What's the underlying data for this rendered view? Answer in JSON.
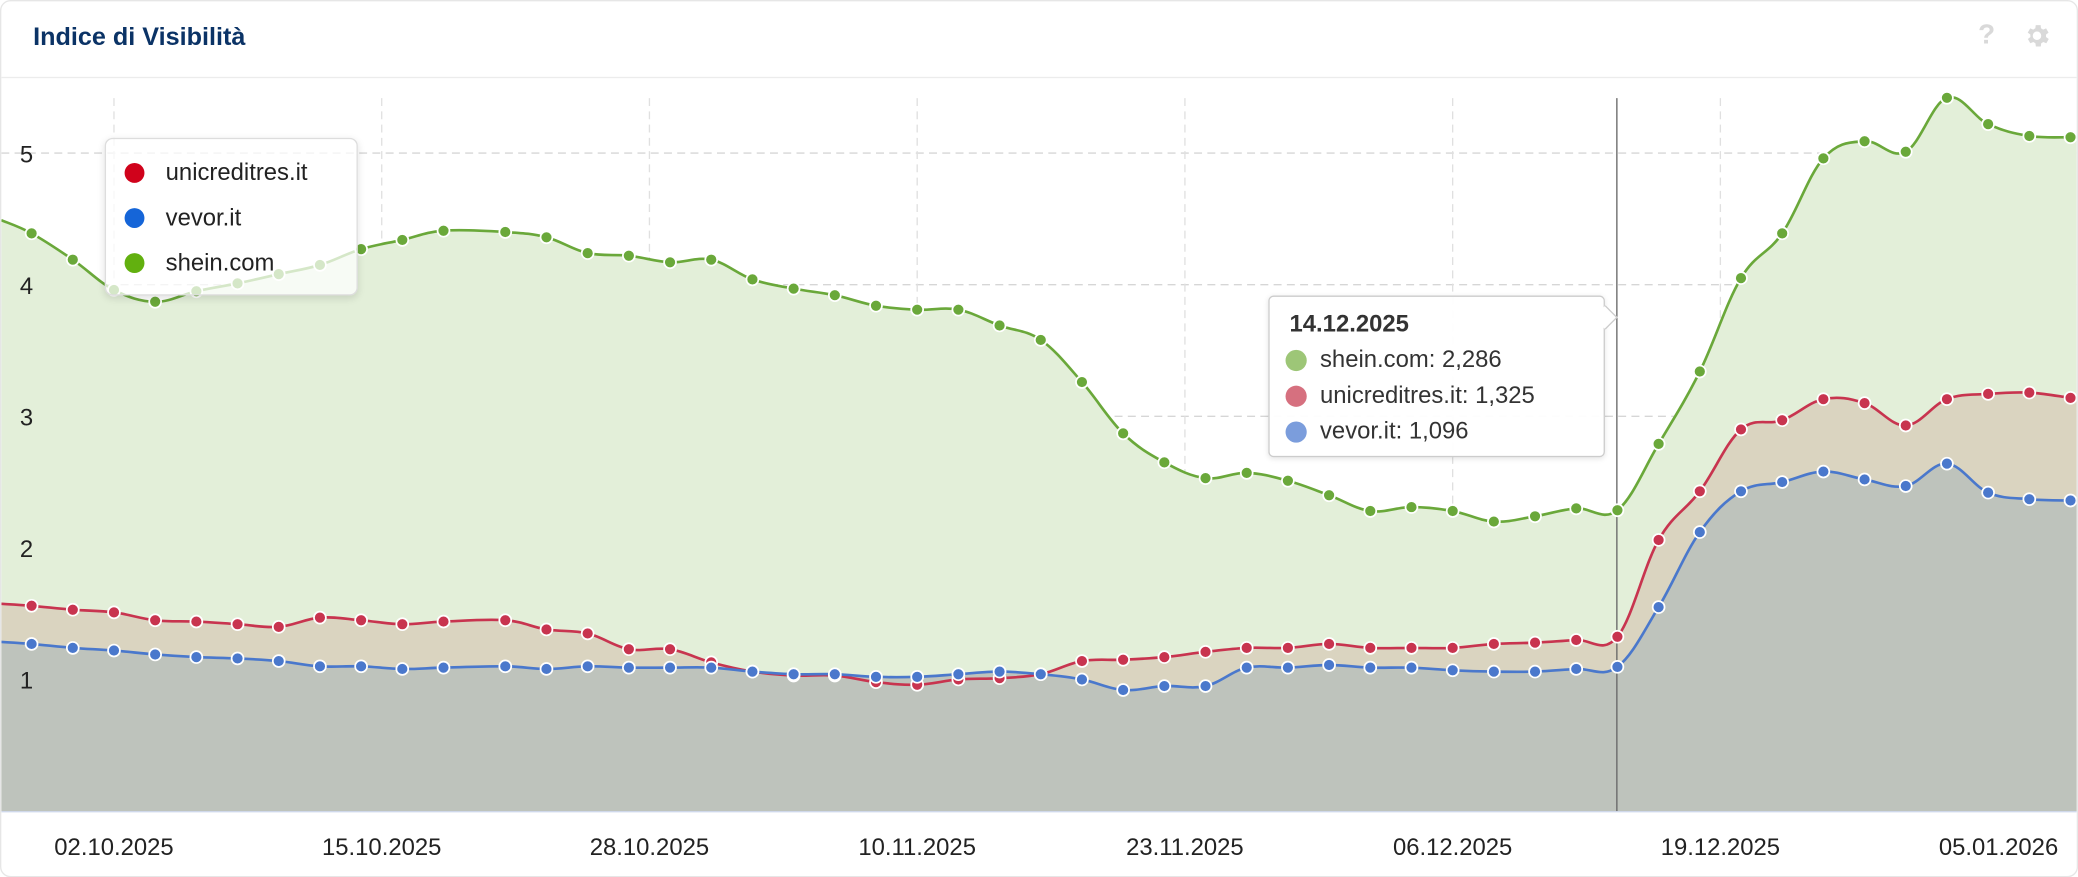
{
  "header": {
    "title": "Indice di Visibilità",
    "help_icon": "question-icon",
    "settings_icon": "gear-icon"
  },
  "colors": {
    "shein": "#6aa83a",
    "unicredit": "#c8344f",
    "vevor": "#4a78cc"
  },
  "legend": [
    {
      "label": "unicreditres.it",
      "color": "#d0021b"
    },
    {
      "label": "vevor.it",
      "color": "#1565d8"
    },
    {
      "label": "shein.com",
      "color": "#62b00f"
    }
  ],
  "tooltip": {
    "date": "14.12.2025",
    "rows": [
      {
        "text": "shein.com: 2,286",
        "color": "#9dc677"
      },
      {
        "text": "unicreditres.it: 1,325",
        "color": "#d6707f"
      },
      {
        "text": "vevor.it: 1,096",
        "color": "#7b9ddc"
      }
    ]
  },
  "chart_data": {
    "type": "area",
    "title": "Indice di Visibilità",
    "xlabel": "",
    "ylabel": "",
    "ylim": [
      0,
      5.5
    ],
    "yticks": [
      "1",
      "2",
      "3",
      "4",
      "5"
    ],
    "xticks": [
      "02.10.2025",
      "15.10.2025",
      "28.10.2025",
      "10.11.2025",
      "23.11.2025",
      "06.12.2025",
      "19.12.2025",
      "05.01.2026"
    ],
    "grid": true,
    "legend_position": "top-left",
    "highlight_date": "14.12.2025",
    "x": [
      "28.09.2025",
      "30.09.2025",
      "02.10.2025",
      "04.10.2025",
      "06.10.2025",
      "08.10.2025",
      "10.10.2025",
      "12.10.2025",
      "14.10.2025",
      "16.10.2025",
      "18.10.2025",
      "21.10.2025",
      "23.10.2025",
      "25.10.2025",
      "27.10.2025",
      "29.10.2025",
      "31.10.2025",
      "02.11.2025",
      "04.11.2025",
      "06.11.2025",
      "08.11.2025",
      "10.11.2025",
      "12.11.2025",
      "14.11.2025",
      "16.11.2025",
      "18.11.2025",
      "20.11.2025",
      "22.11.2025",
      "24.11.2025",
      "26.11.2025",
      "28.11.2025",
      "30.11.2025",
      "02.12.2025",
      "04.12.2025",
      "06.12.2025",
      "08.12.2025",
      "10.12.2025",
      "12.12.2025",
      "14.12.2025",
      "16.12.2025",
      "18.12.2025",
      "20.12.2025",
      "22.12.2025",
      "24.12.2025",
      "26.12.2025",
      "28.12.2025",
      "30.12.2025",
      "01.01.2026",
      "03.01.2026",
      "05.01.2026"
    ],
    "series": [
      {
        "name": "shein.com",
        "key": "shein",
        "values": [
          4.39,
          4.19,
          3.96,
          3.87,
          3.95,
          4.01,
          4.08,
          4.15,
          4.27,
          4.34,
          4.41,
          4.4,
          4.36,
          4.24,
          4.22,
          4.17,
          4.19,
          4.04,
          3.97,
          3.92,
          3.84,
          3.81,
          3.81,
          3.69,
          3.58,
          3.26,
          2.87,
          2.65,
          2.53,
          2.57,
          2.51,
          2.4,
          2.28,
          2.31,
          2.28,
          2.2,
          2.24,
          2.3,
          2.286,
          2.79,
          3.34,
          4.05,
          4.39,
          4.96,
          5.09,
          5.01,
          5.42,
          5.22,
          5.13,
          5.12
        ]
      },
      {
        "name": "unicreditres.it",
        "key": "unicredit",
        "values": [
          1.56,
          1.53,
          1.51,
          1.45,
          1.44,
          1.42,
          1.4,
          1.47,
          1.45,
          1.42,
          1.44,
          1.45,
          1.38,
          1.35,
          1.23,
          1.23,
          1.13,
          1.06,
          1.03,
          1.03,
          0.98,
          0.96,
          1.0,
          1.01,
          1.04,
          1.14,
          1.15,
          1.17,
          1.21,
          1.24,
          1.24,
          1.27,
          1.24,
          1.24,
          1.24,
          1.27,
          1.28,
          1.3,
          1.325,
          2.06,
          2.43,
          2.9,
          2.97,
          3.13,
          3.1,
          2.93,
          3.13,
          3.17,
          3.18,
          3.14
        ]
      },
      {
        "name": "vevor.it",
        "key": "vevor",
        "values": [
          1.27,
          1.24,
          1.22,
          1.19,
          1.17,
          1.16,
          1.14,
          1.1,
          1.1,
          1.08,
          1.09,
          1.1,
          1.08,
          1.1,
          1.09,
          1.09,
          1.09,
          1.06,
          1.04,
          1.04,
          1.02,
          1.02,
          1.04,
          1.06,
          1.04,
          1.0,
          0.92,
          0.95,
          0.95,
          1.09,
          1.09,
          1.11,
          1.09,
          1.09,
          1.07,
          1.06,
          1.06,
          1.08,
          1.096,
          1.55,
          2.12,
          2.43,
          2.5,
          2.58,
          2.52,
          2.47,
          2.64,
          2.42,
          2.37,
          2.36
        ]
      }
    ]
  }
}
